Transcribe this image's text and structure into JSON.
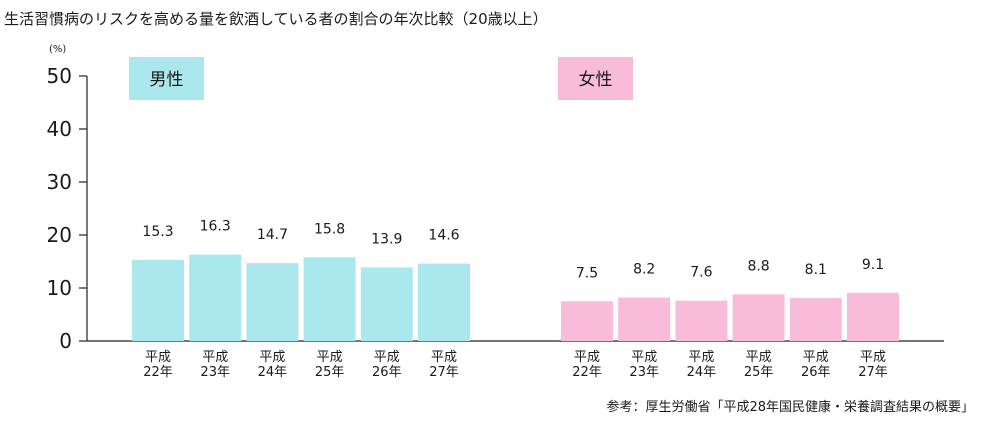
{
  "chart_data": {
    "type": "bar",
    "title": "生活習慣病のリスクを高める量を飲酒している者の割合の年次比較（20歳以上）",
    "unit": "(%)",
    "ylim": [
      0,
      50
    ],
    "yticks": [
      0,
      10,
      20,
      30,
      40,
      50
    ],
    "categories": [
      [
        "平成",
        "22年"
      ],
      [
        "平成",
        "23年"
      ],
      [
        "平成",
        "24年"
      ],
      [
        "平成",
        "25年"
      ],
      [
        "平成",
        "26年"
      ],
      [
        "平成",
        "27年"
      ]
    ],
    "series": [
      {
        "name": "男性",
        "color": "#aae8ee",
        "values": [
          15.3,
          16.3,
          14.7,
          15.8,
          13.9,
          14.6
        ]
      },
      {
        "name": "女性",
        "color": "#f8bcd8",
        "values": [
          7.5,
          8.2,
          7.6,
          8.8,
          8.1,
          9.1
        ]
      }
    ],
    "source": "参考：厚生労働省「平成28年国民健康・栄養調査結果の概要」"
  }
}
